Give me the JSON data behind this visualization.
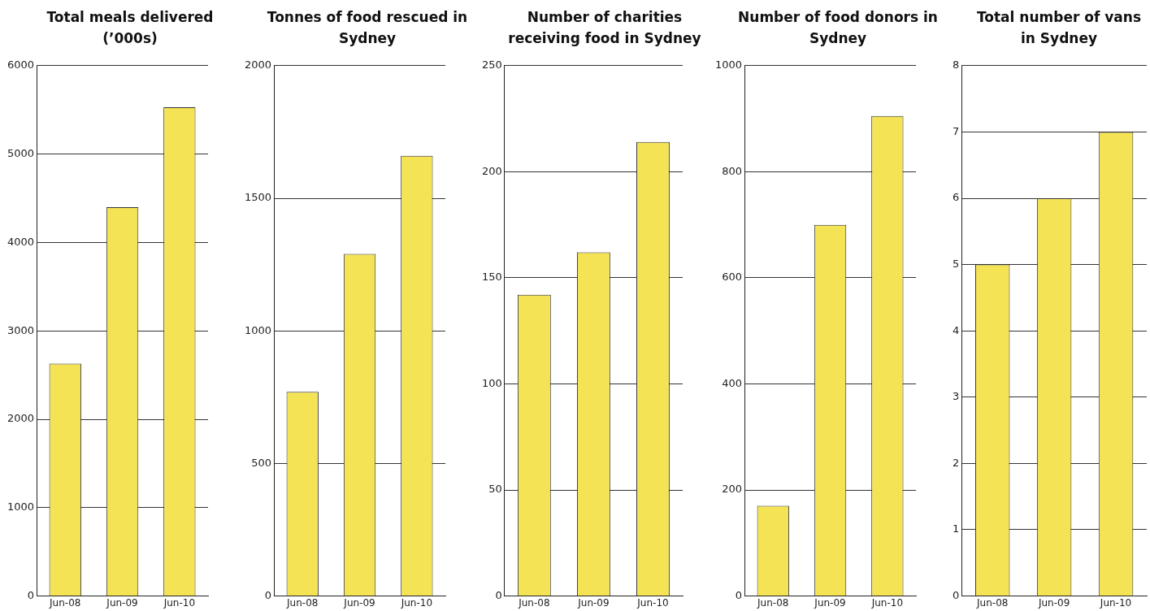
{
  "chart_data": [
    {
      "type": "bar",
      "title": "Total meals delivered (’000s)",
      "categories": [
        "Jun-08",
        "Jun-09",
        "Jun-10"
      ],
      "values": [
        2630,
        4400,
        5530
      ],
      "color": "#f5e356",
      "ylim": [
        0,
        6000
      ],
      "yticks": [
        0,
        1000,
        2000,
        3000,
        4000,
        5000,
        6000
      ],
      "grid": "y"
    },
    {
      "type": "bar",
      "title": "Tonnes of food rescued in Sydney",
      "categories": [
        "Jun-08",
        "Jun-09",
        "Jun-10"
      ],
      "values": [
        770,
        1290,
        1660
      ],
      "color": "#f5e356",
      "ylim": [
        0,
        2000
      ],
      "yticks": [
        0,
        500,
        1000,
        1500,
        2000
      ],
      "grid": "y"
    },
    {
      "type": "bar",
      "title": "Number of charities receiving food in Sydney",
      "categories": [
        "Jun-08",
        "Jun-09",
        "Jun-10"
      ],
      "values": [
        142,
        162,
        214
      ],
      "color": "#f5e356",
      "ylim": [
        0,
        250
      ],
      "yticks": [
        0,
        50,
        100,
        150,
        200,
        250
      ],
      "grid": "y"
    },
    {
      "type": "bar",
      "title": "Number of food donors in Sydney",
      "categories": [
        "Jun-08",
        "Jun-09",
        "Jun-10"
      ],
      "values": [
        170,
        700,
        905
      ],
      "color": "#f5e356",
      "ylim": [
        0,
        1000
      ],
      "yticks": [
        0,
        200,
        400,
        600,
        800,
        1000
      ],
      "grid": "y"
    },
    {
      "type": "bar",
      "title": "Total number of vans in Sydney",
      "categories": [
        "Jun-08",
        "Jun-09",
        "Jun-10"
      ],
      "values": [
        5,
        6,
        7
      ],
      "color": "#f5e356",
      "ylim": [
        0,
        8
      ],
      "yticks": [
        0,
        1,
        2,
        3,
        4,
        5,
        6,
        7,
        8
      ],
      "grid": "y"
    }
  ]
}
